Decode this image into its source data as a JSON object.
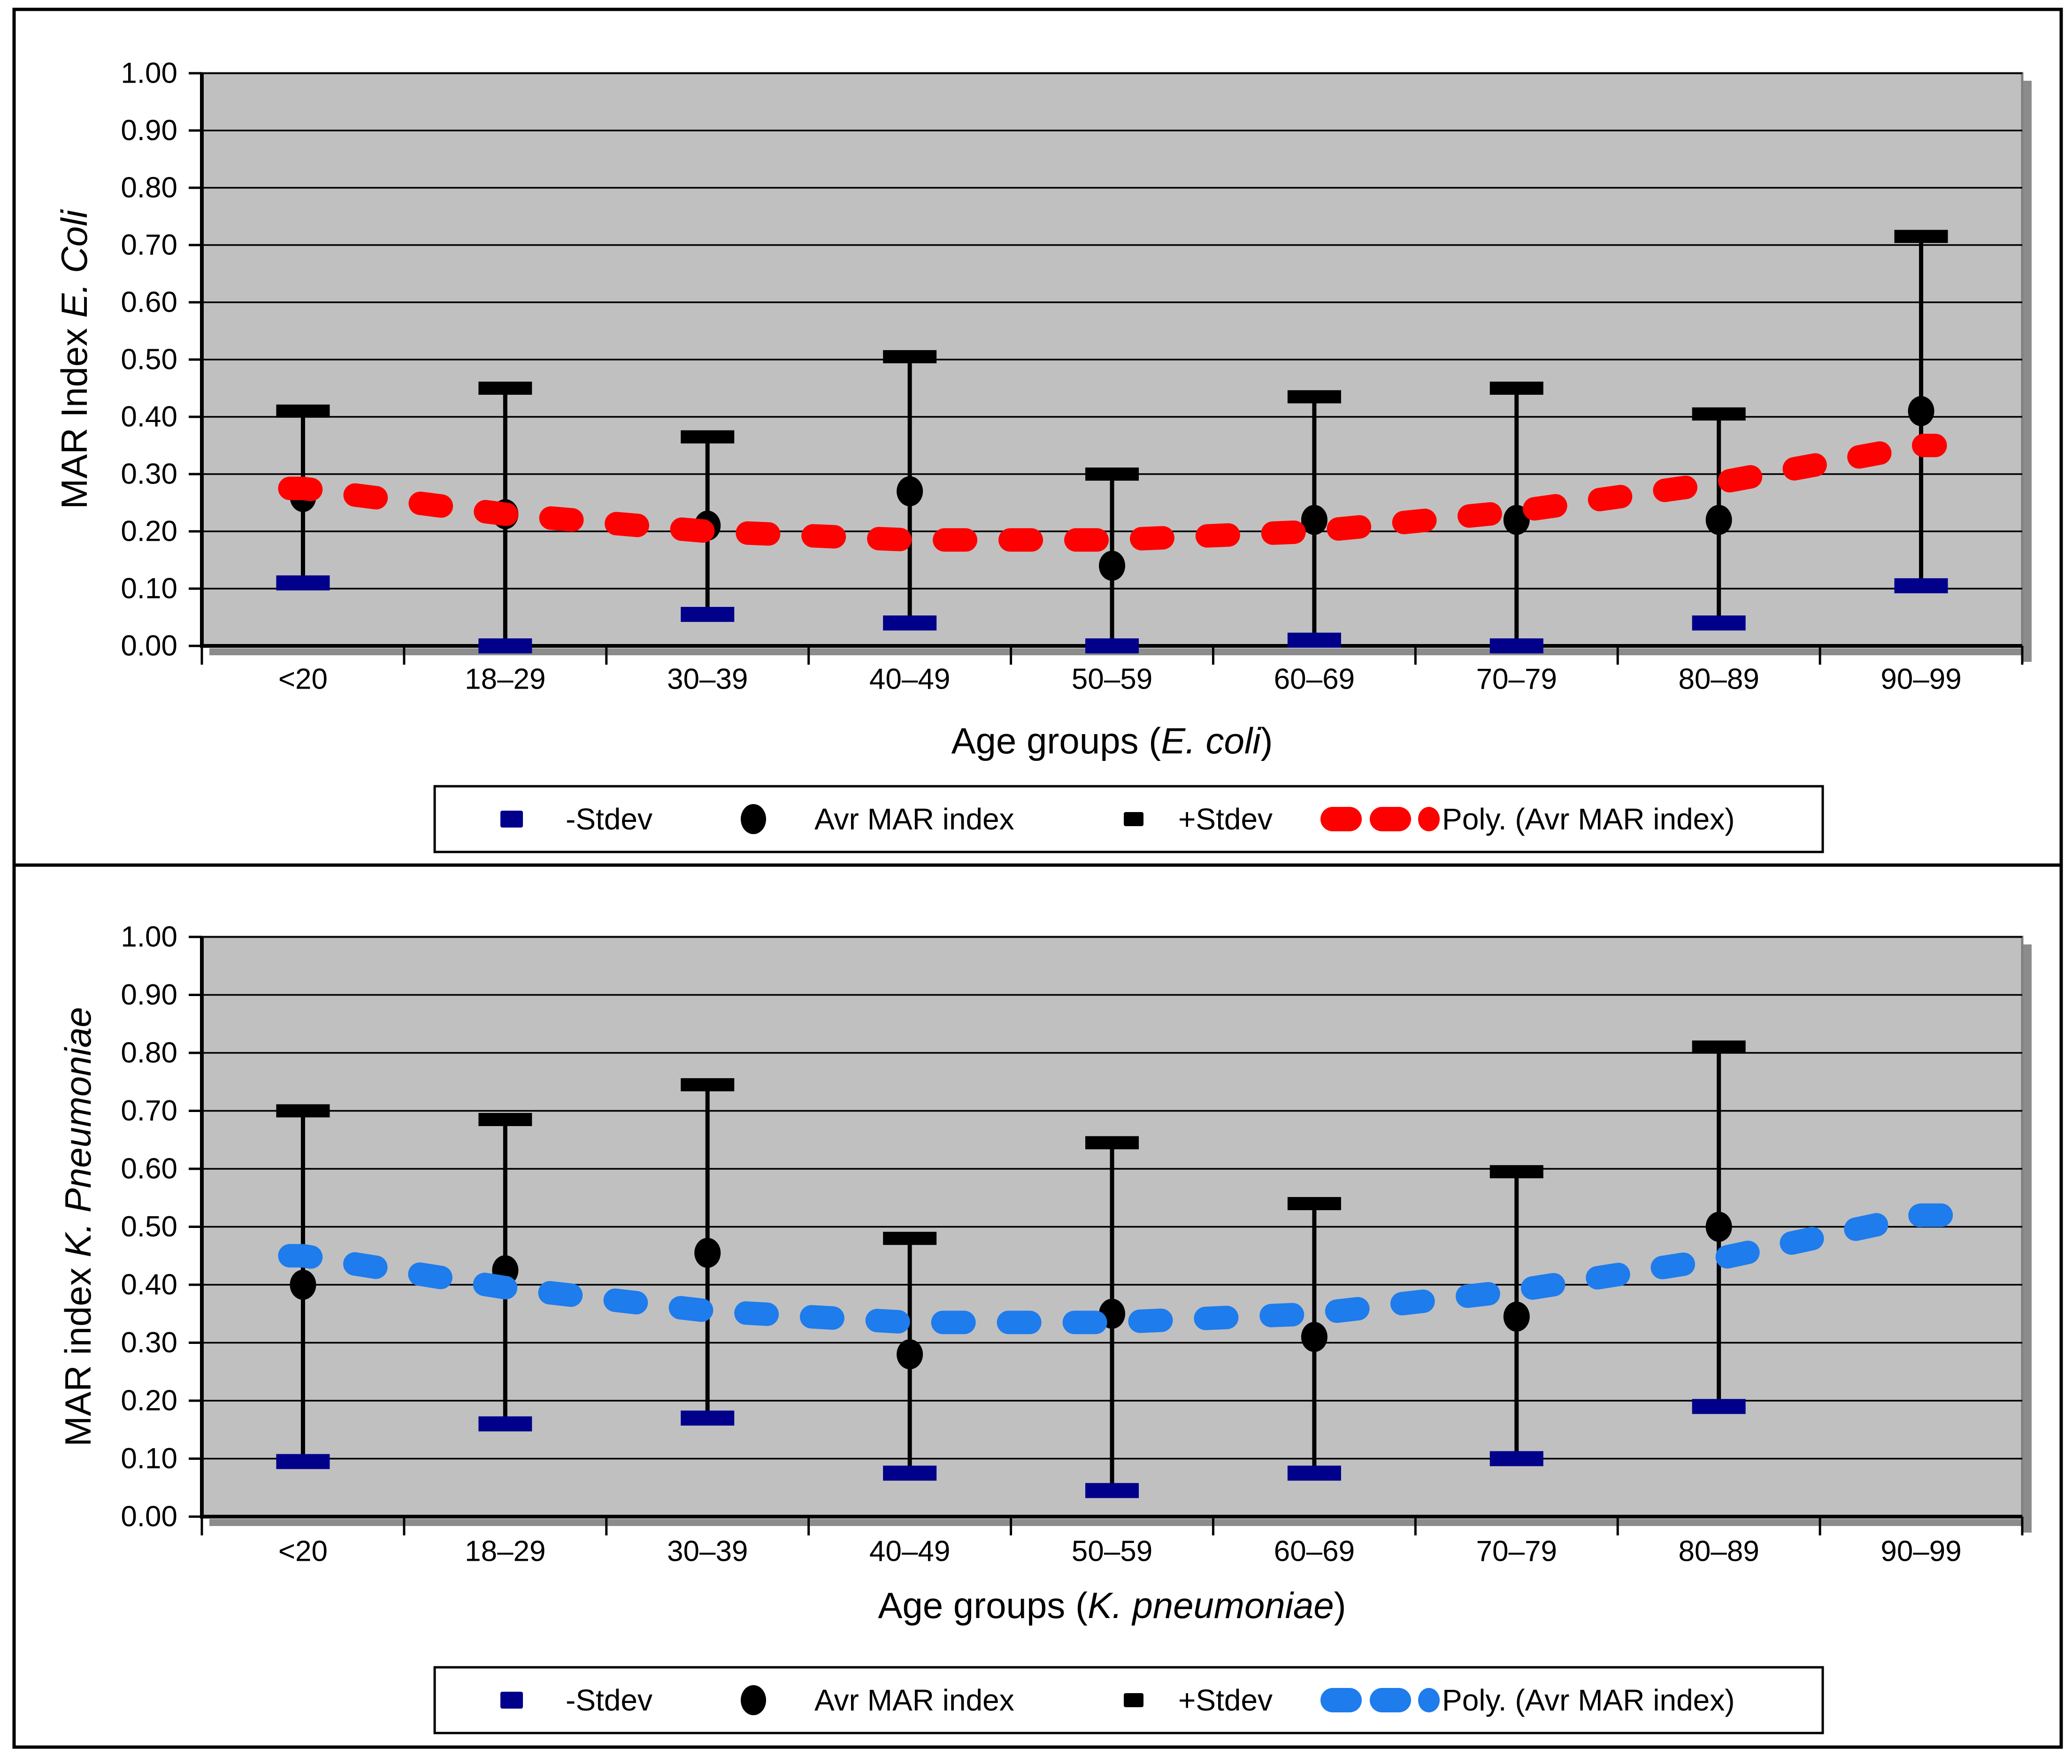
{
  "figure": {
    "background": "#ffffff",
    "border_color": "#000000",
    "plot_background": "#c0c0c0",
    "shadow_color": "#8c8c8c",
    "gridline_color": "#000000"
  },
  "legend": {
    "labels": {
      "minus": "-Stdev",
      "avg": "Avr MAR index",
      "plus": "+Stdev",
      "poly": "Poly. (Avr MAR index)"
    },
    "marker_colors": {
      "minus": "#00008b",
      "avg": "#000000",
      "plus": "#000000"
    }
  },
  "chart_data": [
    {
      "id": "ecoli",
      "type": "scatter",
      "title": "",
      "ylabel_plain": "MAR Index ",
      "ylabel_italic": "E. Coli",
      "xlabel_plain": "Age groups (",
      "xlabel_italic": "E. coli",
      "xlabel_close": ")",
      "ylim": [
        0,
        1
      ],
      "grid": true,
      "legend_position": "bottom",
      "yticks": [
        "0.00",
        "0.10",
        "0.20",
        "0.30",
        "0.40",
        "0.50",
        "0.60",
        "0.70",
        "0.80",
        "0.90",
        "1.00"
      ],
      "categories": [
        "<20",
        "18–29",
        "30–39",
        "40–49",
        "50–59",
        "60–69",
        "70–79",
        "80–89",
        "90–99"
      ],
      "trend_color": "#fe0000",
      "series": [
        {
          "name": "-Stdev",
          "values": [
            0.11,
            0.0,
            0.055,
            0.04,
            0.0,
            0.01,
            0.0,
            0.04,
            0.105
          ]
        },
        {
          "name": "Avr MAR index",
          "values": [
            0.26,
            0.23,
            0.21,
            0.27,
            0.14,
            0.22,
            0.22,
            0.22,
            0.41
          ]
        },
        {
          "name": "+Stdev",
          "values": [
            0.41,
            0.45,
            0.365,
            0.505,
            0.3,
            0.435,
            0.45,
            0.405,
            0.715
          ]
        },
        {
          "name": "Poly. (Avr MAR index)",
          "values": [
            0.275,
            0.23,
            0.2,
            0.185,
            0.185,
            0.2,
            0.235,
            0.285,
            0.35
          ]
        }
      ]
    },
    {
      "id": "kpneumoniae",
      "type": "scatter",
      "title": "",
      "ylabel_plain": "MAR index ",
      "ylabel_italic": "K. Pneumoniae",
      "xlabel_plain": "Age groups (",
      "xlabel_italic": "K. pneumoniae",
      "xlabel_close": ")",
      "ylim": [
        0,
        1
      ],
      "grid": true,
      "legend_position": "bottom",
      "yticks": [
        "0.00",
        "0.10",
        "0.20",
        "0.30",
        "0.40",
        "0.50",
        "0.60",
        "0.70",
        "0.80",
        "0.90",
        "1.00"
      ],
      "categories": [
        "<20",
        "18–29",
        "30–39",
        "40–49",
        "50–59",
        "60–69",
        "70–79",
        "80–89",
        "90–99"
      ],
      "trend_color": "#1e7cec",
      "series": [
        {
          "name": "-Stdev",
          "values": [
            0.095,
            0.16,
            0.17,
            0.075,
            0.045,
            0.075,
            0.1,
            0.19,
            null
          ]
        },
        {
          "name": "Avr MAR index",
          "values": [
            0.4,
            0.425,
            0.455,
            0.28,
            0.35,
            0.31,
            0.345,
            0.5,
            null
          ]
        },
        {
          "name": "+Stdev",
          "values": [
            0.7,
            0.685,
            0.745,
            0.48,
            0.645,
            0.54,
            0.595,
            0.81,
            null
          ]
        },
        {
          "name": "Poly. (Avr MAR index)",
          "values": [
            0.45,
            0.395,
            0.355,
            0.335,
            0.335,
            0.35,
            0.39,
            0.445,
            0.52
          ]
        }
      ]
    }
  ]
}
